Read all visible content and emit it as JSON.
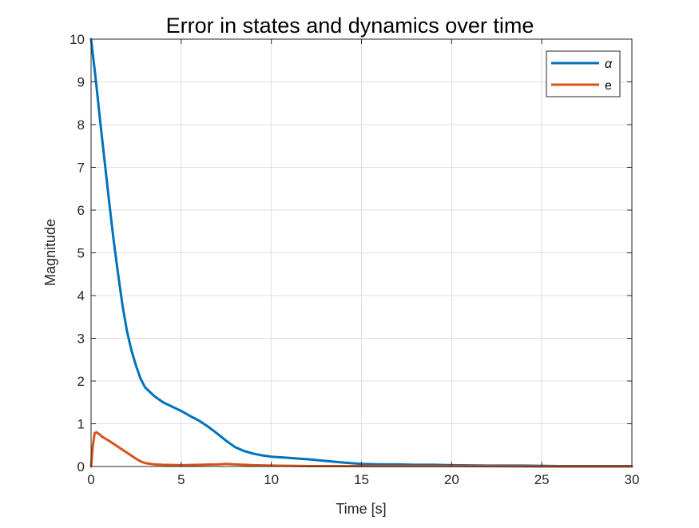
{
  "chart_data": {
    "type": "line",
    "title": "Error in states and dynamics over time",
    "xlabel": "Time [s]",
    "ylabel": "Magnitude",
    "xlim": [
      0,
      30
    ],
    "ylim": [
      0,
      10
    ],
    "xticks": [
      0,
      5,
      10,
      15,
      20,
      25,
      30
    ],
    "yticks": [
      0,
      1,
      2,
      3,
      4,
      5,
      6,
      7,
      8,
      9,
      10
    ],
    "grid": true,
    "legend_position": "top-right",
    "series": [
      {
        "name": "α",
        "color": "#0072BD",
        "x": [
          0,
          0.25,
          0.5,
          0.75,
          1,
          1.25,
          1.5,
          1.75,
          2,
          2.25,
          2.5,
          2.75,
          3,
          3.5,
          4,
          4.5,
          5,
          5.5,
          6,
          6.5,
          7,
          7.5,
          8,
          8.5,
          9,
          9.5,
          10,
          11,
          12,
          13,
          14,
          15,
          16,
          17,
          18,
          19,
          20,
          22,
          24,
          26,
          28,
          30
        ],
        "y": [
          10,
          9.1,
          8.1,
          7.15,
          6.2,
          5.3,
          4.5,
          3.75,
          3.15,
          2.7,
          2.35,
          2.05,
          1.85,
          1.65,
          1.5,
          1.4,
          1.3,
          1.18,
          1.07,
          0.93,
          0.77,
          0.6,
          0.45,
          0.36,
          0.3,
          0.26,
          0.23,
          0.2,
          0.17,
          0.13,
          0.09,
          0.06,
          0.05,
          0.05,
          0.04,
          0.04,
          0.03,
          0.02,
          0.02,
          0.01,
          0.01,
          0.01
        ]
      },
      {
        "name": "e",
        "color": "#D95319",
        "x": [
          0,
          0.1,
          0.2,
          0.3,
          0.45,
          0.6,
          0.8,
          1,
          1.25,
          1.5,
          1.75,
          2,
          2.25,
          2.5,
          2.75,
          3,
          3.5,
          4,
          5,
          6,
          7,
          7.5,
          8,
          9,
          10,
          12,
          15,
          20,
          25,
          30
        ],
        "y": [
          0,
          0.5,
          0.78,
          0.8,
          0.76,
          0.7,
          0.65,
          0.6,
          0.53,
          0.46,
          0.39,
          0.32,
          0.25,
          0.18,
          0.12,
          0.08,
          0.05,
          0.04,
          0.03,
          0.04,
          0.05,
          0.06,
          0.05,
          0.03,
          0.02,
          0.01,
          0.01,
          0.01,
          0.0,
          0.0
        ]
      }
    ]
  }
}
